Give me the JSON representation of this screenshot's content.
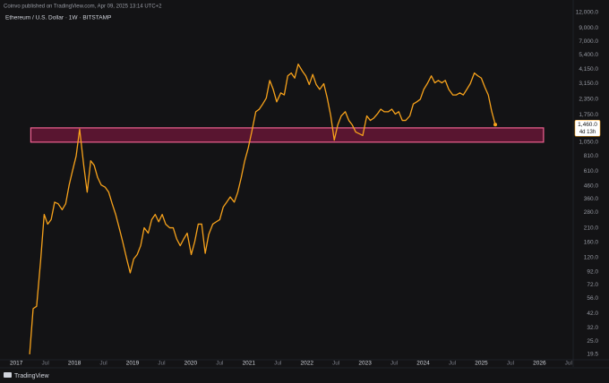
{
  "chart_data": {
    "type": "line",
    "header": "Coinvo published on TradingView.com, Apr 09, 2025 13:14 UTC+2",
    "title": "Ethereum / U.S. Dollar · 1W · BITSTAMP",
    "footer": "TradingView",
    "color": "#f7a21b",
    "log_scale": true,
    "grid": false,
    "xlim": [
      2016.72,
      2026.58
    ],
    "ylim": [
      17.6,
      13270
    ],
    "x": [
      2017.23,
      2017.29,
      2017.35,
      2017.42,
      2017.48,
      2017.54,
      2017.6,
      2017.66,
      2017.72,
      2017.79,
      2017.85,
      2017.91,
      2017.97,
      2018.03,
      2018.09,
      2018.16,
      2018.22,
      2018.28,
      2018.34,
      2018.4,
      2018.46,
      2018.53,
      2018.59,
      2018.65,
      2018.71,
      2018.77,
      2018.83,
      2018.9,
      2018.96,
      2019.02,
      2019.08,
      2019.14,
      2019.2,
      2019.27,
      2019.33,
      2019.39,
      2019.45,
      2019.51,
      2019.57,
      2019.64,
      2019.7,
      2019.76,
      2019.82,
      2019.88,
      2019.94,
      2020.01,
      2020.07,
      2020.13,
      2020.19,
      2020.25,
      2020.31,
      2020.38,
      2020.44,
      2020.5,
      2020.56,
      2020.62,
      2020.68,
      2020.75,
      2020.81,
      2020.87,
      2020.93,
      2020.99,
      2021.05,
      2021.12,
      2021.18,
      2021.24,
      2021.3,
      2021.36,
      2021.42,
      2021.48,
      2021.55,
      2021.61,
      2021.67,
      2021.73,
      2021.79,
      2021.85,
      2021.92,
      2021.98,
      2022.04,
      2022.1,
      2022.16,
      2022.22,
      2022.29,
      2022.35,
      2022.41,
      2022.47,
      2022.53,
      2022.59,
      2022.66,
      2022.72,
      2022.78,
      2022.84,
      2022.9,
      2022.96,
      2023.03,
      2023.09,
      2023.15,
      2023.21,
      2023.27,
      2023.33,
      2023.4,
      2023.46,
      2023.52,
      2023.58,
      2023.64,
      2023.7,
      2023.77,
      2023.83,
      2023.89,
      2023.95,
      2024.01,
      2024.07,
      2024.14,
      2024.2,
      2024.26,
      2024.32,
      2024.38,
      2024.44,
      2024.51,
      2024.57,
      2024.63,
      2024.69,
      2024.75,
      2024.81,
      2024.88,
      2024.94,
      2025.0,
      2025.06,
      2025.12,
      2025.18,
      2025.24
    ],
    "values": [
      19.5,
      46,
      48,
      115,
      270,
      225,
      245,
      340,
      330,
      295,
      330,
      470,
      620,
      810,
      1340,
      680,
      410,
      740,
      680,
      540,
      470,
      450,
      410,
      330,
      270,
      210,
      162,
      117,
      90,
      117,
      127,
      150,
      210,
      190,
      245,
      270,
      235,
      270,
      225,
      210,
      210,
      170,
      150,
      170,
      190,
      127,
      162,
      225,
      225,
      130,
      185,
      225,
      235,
      245,
      310,
      340,
      375,
      340,
      410,
      540,
      740,
      940,
      1270,
      1860,
      1950,
      2150,
      2400,
      3350,
      2830,
      2240,
      2650,
      2550,
      3650,
      3850,
      3500,
      4550,
      4000,
      3650,
      3100,
      3750,
      3100,
      2830,
      3150,
      2400,
      1720,
      1090,
      1450,
      1720,
      1860,
      1580,
      1450,
      1270,
      1230,
      1190,
      1720,
      1580,
      1650,
      1780,
      1950,
      1860,
      1860,
      1950,
      1780,
      1860,
      1580,
      1580,
      1720,
      2150,
      2240,
      2350,
      2830,
      3150,
      3650,
      3200,
      3350,
      3200,
      3350,
      2830,
      2550,
      2550,
      2650,
      2550,
      2830,
      3150,
      3850,
      3650,
      3500,
      2950,
      2550,
      1860,
      1460
    ],
    "zone": {
      "x": [
        2017.25,
        2026.07
      ],
      "y": [
        1050,
        1373
      ],
      "color": "#c2185b"
    },
    "price_tag": {
      "value": 1460,
      "label": "1,460.0",
      "countdown": "4d 13h"
    },
    "yticks": [
      {
        "value": 12000,
        "label": "12,000.0"
      },
      {
        "value": 9000,
        "label": "9,000.0"
      },
      {
        "value": 7000,
        "label": "7,000.0"
      },
      {
        "value": 5400,
        "label": "5,400.0"
      },
      {
        "value": 4150,
        "label": "4,150.0"
      },
      {
        "value": 3150,
        "label": "3,150.0"
      },
      {
        "value": 2350,
        "label": "2,350.0"
      },
      {
        "value": 1750,
        "label": "1,750.0"
      },
      {
        "value": 1050,
        "label": "1,050.0"
      },
      {
        "value": 810,
        "label": "810.0"
      },
      {
        "value": 610,
        "label": "610.0"
      },
      {
        "value": 460,
        "label": "460.0"
      },
      {
        "value": 360,
        "label": "360.0"
      },
      {
        "value": 280,
        "label": "280.0"
      },
      {
        "value": 210,
        "label": "210.0"
      },
      {
        "value": 160,
        "label": "160.0"
      },
      {
        "value": 120,
        "label": "120.0"
      },
      {
        "value": 92,
        "label": "92.0"
      },
      {
        "value": 72,
        "label": "72.0"
      },
      {
        "value": 56,
        "label": "56.0"
      },
      {
        "value": 42,
        "label": "42.0"
      },
      {
        "value": 32,
        "label": "32.0"
      },
      {
        "value": 25,
        "label": "25.0"
      },
      {
        "value": 19.5,
        "label": "19.5"
      }
    ],
    "xticks": [
      2017,
      {
        "value": 2017.5,
        "label": "Jul"
      },
      2018,
      {
        "value": 2018.5,
        "label": "Jul"
      },
      2019,
      {
        "value": 2019.5,
        "label": "Jul"
      },
      2020,
      {
        "value": 2020.5,
        "label": "Jul"
      },
      2021,
      {
        "value": 2021.5,
        "label": "Jul"
      },
      2022,
      {
        "value": 2022.5,
        "label": "Jul"
      },
      2023,
      {
        "value": 2023.5,
        "label": "Jul"
      },
      2024,
      {
        "value": 2024.5,
        "label": "Jul"
      },
      2025,
      {
        "value": 2025.5,
        "label": "Jul"
      },
      2026,
      {
        "value": 2026.5,
        "label": "Jul"
      }
    ]
  }
}
